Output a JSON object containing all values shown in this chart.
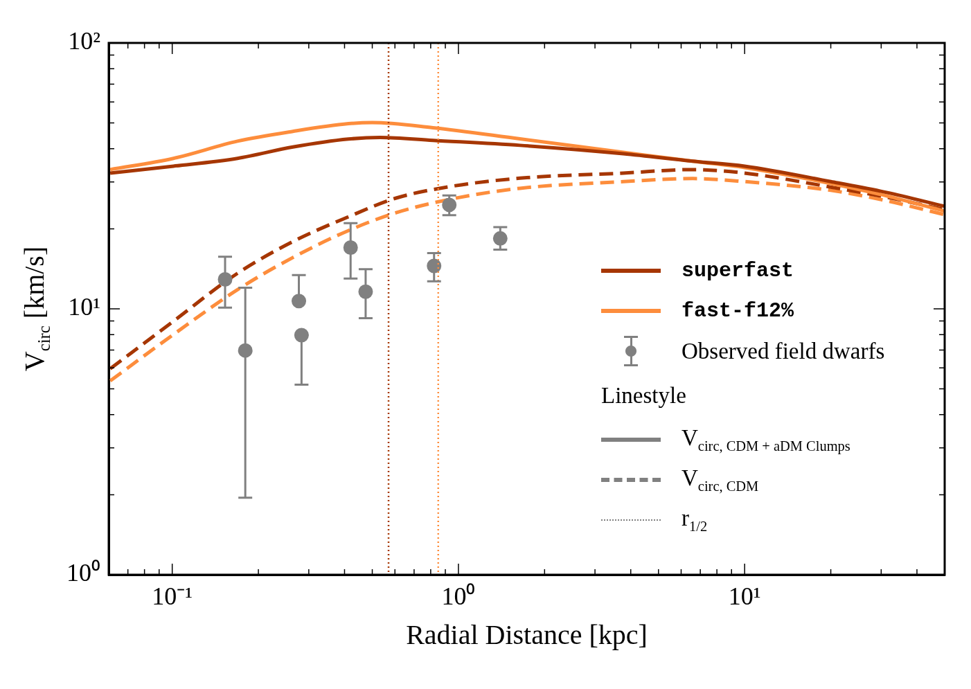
{
  "chart_data": {
    "type": "line",
    "xlabel": "Radial Distance [kpc]",
    "ylabel": "V$_{circ}$ [km/s]",
    "log": "xy",
    "xlim": [
      0.06,
      50
    ],
    "ylim": [
      1,
      100
    ],
    "xticks": [
      {
        "value": 0.1,
        "label": "10⁻¹"
      },
      {
        "value": 1,
        "label": "10⁰"
      },
      {
        "value": 10,
        "label": "10¹"
      }
    ],
    "yticks": [
      {
        "value": 1,
        "label": "10⁰"
      },
      {
        "value": 10,
        "label": "10¹"
      },
      {
        "value": 100,
        "label": "10²"
      }
    ],
    "grid": false,
    "legend": "right",
    "series": [
      {
        "name": "superfast",
        "type": "line",
        "color": "#a63603",
        "line_style": "solid",
        "x": [
          0.0607,
          0.101,
          0.169,
          0.264,
          0.413,
          0.533,
          0.815,
          1.64,
          3.77,
          6.59,
          10,
          20,
          31.3,
          50
        ],
        "values": [
          32.4,
          34.4,
          36.8,
          40.6,
          43.5,
          44.1,
          43.0,
          41.2,
          38.3,
          35.9,
          34.4,
          30.1,
          27.4,
          24.3
        ]
      },
      {
        "name": "fast-f12%",
        "type": "line",
        "color": "#fd8d3c",
        "line_style": "solid",
        "x": [
          0.0607,
          0.101,
          0.169,
          0.264,
          0.413,
          0.5,
          0.815,
          1.64,
          3.77,
          6.59,
          10,
          20,
          31.3,
          50
        ],
        "values": [
          33.4,
          36.8,
          42.7,
          46.5,
          49.7,
          50.2,
          48.0,
          43.6,
          38.8,
          35.9,
          34.0,
          29.6,
          26.6,
          23.3
        ]
      },
      {
        "type": "line",
        "color": "#a63603",
        "line_style": "dashed",
        "x": [
          0.0607,
          0.101,
          0.169,
          0.264,
          0.413,
          0.606,
          0.93,
          1.64,
          3.77,
          6.59,
          10,
          20,
          31.3,
          50
        ],
        "values": [
          5.95,
          8.99,
          13.6,
          17.9,
          22.2,
          26.1,
          28.8,
          31.0,
          32.4,
          33.4,
          32.4,
          28.7,
          26.3,
          23.6
        ]
      },
      {
        "type": "line",
        "color": "#fd8d3c",
        "line_style": "dashed",
        "x": [
          0.0607,
          0.101,
          0.169,
          0.264,
          0.413,
          0.606,
          0.93,
          1.64,
          3.77,
          6.59,
          10,
          20,
          31.3,
          50
        ],
        "values": [
          5.36,
          8.01,
          11.8,
          15.6,
          19.7,
          23.0,
          25.8,
          28.4,
          30.1,
          30.9,
          30.1,
          27.9,
          25.5,
          22.6
        ]
      },
      {
        "name": "Observed field dwarfs",
        "type": "scatter",
        "color": "#808080",
        "marker": "circle",
        "x": [
          0.153,
          0.18,
          0.277,
          0.283,
          0.42,
          0.474,
          0.822,
          0.929,
          1.4
        ],
        "values": [
          12.9,
          6.97,
          10.7,
          7.96,
          17.0,
          11.6,
          14.5,
          24.6,
          18.4
        ],
        "errors": [
          [
            10.1,
            15.7
          ],
          [
            1.95,
            12.0
          ],
          [
            10.7,
            13.4
          ],
          [
            5.19,
            7.96
          ],
          [
            13.0,
            21.0
          ],
          [
            9.22,
            14.1
          ],
          [
            12.7,
            16.2
          ],
          [
            22.5,
            26.7
          ],
          [
            16.7,
            20.3
          ]
        ]
      }
    ],
    "ref_lines": [
      {
        "axis": "x",
        "value": 0.57,
        "color": "#a63603",
        "line_style": "dotted"
      },
      {
        "axis": "x",
        "value": 0.85,
        "color": "#fd8d3c",
        "line_style": "dotted"
      }
    ],
    "annotations": [
      "Linestyle",
      "V$_{circ, CDM + aDM Clumps}$",
      "V$_{circ, CDM}$",
      "r$_{1/2}$"
    ]
  }
}
